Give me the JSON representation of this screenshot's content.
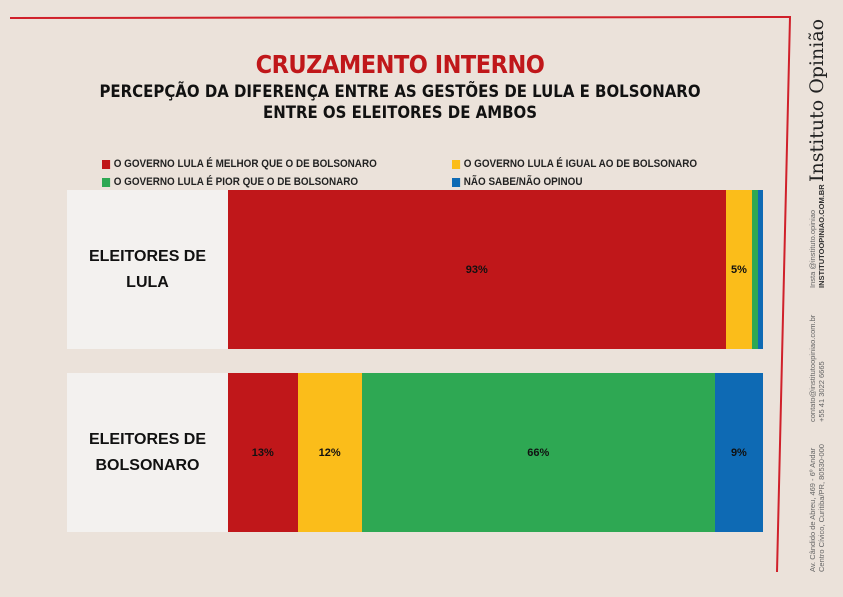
{
  "header": {
    "title": "CRUZAMENTO INTERNO",
    "subtitle_line1": "PERCEPÇÃO DA DIFERENÇA ENTRE AS GESTÕES DE LULA E BOLSONARO",
    "subtitle_line2": "ENTRE OS ELEITORES DE AMBOS"
  },
  "brand": {
    "name": "Instituto Opinião",
    "insta": "Insta @instituto.opiniao",
    "site": "INSTITUTOOPINIAO.COM.BR",
    "email": "contato@institutoopiniao.com.br",
    "phone": "+55 41 3022 6665",
    "address1": "Av. Cândido de Abreu, 469 - 6º Andar",
    "address2": "Centro Cívico, Curitiba/PR, 80530-000"
  },
  "colors": {
    "accent": "#d0202a",
    "red": "#c0171a",
    "yellow": "#fbbd1a",
    "green": "#2ea853",
    "blue": "#0e6ab4"
  },
  "chart_data": {
    "type": "bar",
    "orientation": "horizontal-stacked-100",
    "title": "CRUZAMENTO INTERNO",
    "legend_position": "top",
    "series": [
      {
        "name": "O GOVERNO LULA É MELHOR QUE O DE BOLSONARO",
        "color": "#c0171a",
        "values": [
          93,
          13
        ]
      },
      {
        "name": "O GOVERNO LULA É IGUAL AO DE BOLSONARO",
        "color": "#fbbd1a",
        "values": [
          5,
          12
        ]
      },
      {
        "name": "O GOVERNO LULA É PIOR QUE O DE BOLSONARO",
        "color": "#2ea853",
        "values": [
          1,
          66
        ]
      },
      {
        "name": "NÃO SABE/NÃO OPINOU",
        "color": "#0e6ab4",
        "values": [
          1,
          9
        ]
      }
    ],
    "categories": [
      "ELEITORES DE LULA",
      "ELEITORES DE BOLSONARO"
    ],
    "category_lines": [
      [
        "ELEITORES DE",
        "LULA"
      ],
      [
        "ELEITORES DE",
        "BOLSONARO"
      ]
    ],
    "labels": [
      [
        "93%",
        "5%",
        "",
        ""
      ],
      [
        "13%",
        "12%",
        "66%",
        "9%"
      ]
    ]
  }
}
